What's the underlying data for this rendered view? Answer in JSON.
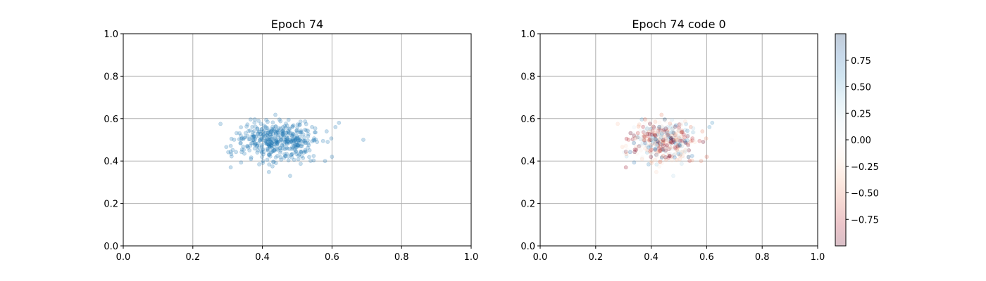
{
  "chart_data": [
    {
      "type": "scatter",
      "title": "Epoch 74",
      "xlabel": "",
      "ylabel": "",
      "xlim": [
        0,
        1
      ],
      "ylim": [
        0,
        1
      ],
      "xticks": [
        "0.0",
        "0.2",
        "0.4",
        "0.6",
        "0.8",
        "1.0"
      ],
      "yticks": [
        "0.0",
        "0.2",
        "0.4",
        "0.6",
        "0.8",
        "1.0"
      ],
      "grid": true,
      "marker_color": "#1f77b4",
      "marker_alpha": 0.25,
      "point_cloud": {
        "n": 420,
        "center": [
          0.44,
          0.5
        ],
        "std": [
          0.058,
          0.048
        ],
        "x_range": [
          0.26,
          0.69
        ],
        "y_range": [
          0.33,
          0.64
        ]
      }
    },
    {
      "type": "scatter",
      "title": "Epoch 74 code 0",
      "xlabel": "",
      "ylabel": "",
      "xlim": [
        0,
        1
      ],
      "ylim": [
        0,
        1
      ],
      "xticks": [
        "0.0",
        "0.2",
        "0.4",
        "0.6",
        "0.8",
        "1.0"
      ],
      "yticks": [
        "0.0",
        "0.2",
        "0.4",
        "0.6",
        "0.8",
        "1.0"
      ],
      "grid": true,
      "colormap": "RdBu",
      "marker_alpha": 0.25,
      "point_cloud_same_as_panel": 0,
      "colorbar": {
        "range": [
          -1,
          1
        ],
        "ticks": [
          0.75,
          0.5,
          0.25,
          0.0,
          -0.25,
          -0.5,
          -0.75
        ],
        "tick_labels": [
          "0.75",
          "0.50",
          "0.25",
          "0.00",
          "−0.25",
          "−0.50",
          "−0.75"
        ]
      }
    }
  ]
}
